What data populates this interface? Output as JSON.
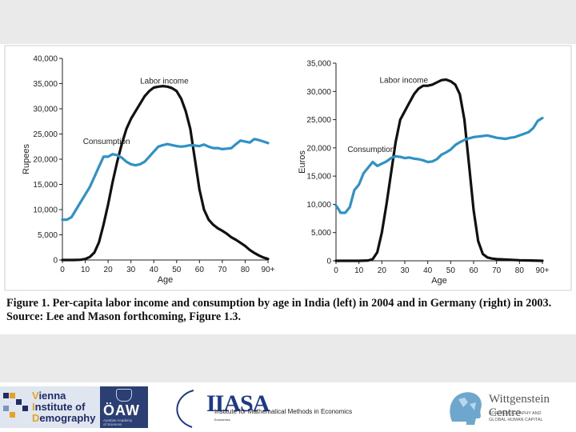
{
  "caption": "Figure 1. Per-capita labor income and consumption by age in India (left) in 2004 and in Germany (right) in 2003. Source: Lee and Mason forthcoming, Figure 1.3.",
  "colors": {
    "labor": "#111111",
    "consumption": "#2f92c6",
    "band": "#eaeaea"
  },
  "chart_data": [
    {
      "type": "line",
      "title": "India 2004",
      "xlabel": "Age",
      "ylabel": "Rupees",
      "xlim": [
        0,
        90
      ],
      "ylim": [
        0,
        40000
      ],
      "xticks": [
        "0",
        "10",
        "20",
        "30",
        "40",
        "50",
        "60",
        "70",
        "80",
        "90+"
      ],
      "yticks": [
        "0",
        "5,000",
        "10,000",
        "15,000",
        "20,000",
        "25,000",
        "30,000",
        "35,000",
        "40,000"
      ],
      "annotations": [
        {
          "text": "Labor income",
          "x": 34,
          "y": 35000,
          "series": "labor"
        },
        {
          "text": "Consumption",
          "x": 9,
          "y": 23000,
          "series": "consumption"
        }
      ],
      "series": [
        {
          "name": "Labor income",
          "x": [
            0,
            5,
            8,
            10,
            12,
            14,
            16,
            18,
            20,
            22,
            24,
            26,
            28,
            30,
            32,
            34,
            36,
            38,
            40,
            42,
            44,
            46,
            48,
            50,
            52,
            54,
            56,
            58,
            60,
            62,
            64,
            66,
            68,
            70,
            72,
            74,
            76,
            78,
            80,
            82,
            84,
            86,
            88,
            90
          ],
          "y": [
            0,
            0,
            50,
            200,
            600,
            1500,
            3500,
            7000,
            11000,
            15500,
            19500,
            23000,
            26000,
            28000,
            29500,
            31000,
            32500,
            33500,
            34200,
            34400,
            34500,
            34400,
            34100,
            33500,
            32000,
            29500,
            26000,
            20000,
            14000,
            10000,
            8000,
            7000,
            6300,
            5800,
            5200,
            4500,
            4000,
            3400,
            2800,
            2000,
            1400,
            900,
            500,
            200
          ]
        },
        {
          "name": "Consumption",
          "x": [
            0,
            2,
            4,
            6,
            8,
            10,
            12,
            14,
            16,
            18,
            20,
            22,
            24,
            26,
            28,
            30,
            32,
            34,
            36,
            38,
            40,
            42,
            44,
            46,
            48,
            50,
            52,
            54,
            56,
            58,
            60,
            62,
            64,
            66,
            68,
            70,
            72,
            74,
            76,
            78,
            80,
            82,
            84,
            86,
            88,
            90
          ],
          "y": [
            8000,
            8000,
            8500,
            10000,
            11500,
            13000,
            14500,
            16500,
            18500,
            20500,
            20500,
            21000,
            20800,
            20300,
            19500,
            19000,
            18800,
            19000,
            19500,
            20500,
            21500,
            22500,
            22800,
            23000,
            22800,
            22600,
            22500,
            22600,
            22800,
            22700,
            22600,
            22900,
            22500,
            22200,
            22200,
            22000,
            22100,
            22200,
            23000,
            23700,
            23500,
            23300,
            24000,
            23800,
            23500,
            23200
          ]
        }
      ]
    },
    {
      "type": "line",
      "title": "Germany 2003",
      "xlabel": "Age",
      "ylabel": "Euros",
      "xlim": [
        0,
        90
      ],
      "ylim": [
        0,
        35000
      ],
      "xticks": [
        "0",
        "10",
        "20",
        "30",
        "40",
        "50",
        "60",
        "70",
        "80",
        "90+"
      ],
      "yticks": [
        "0",
        "5,000",
        "10,000",
        "15,000",
        "20,000",
        "25,000",
        "30,000",
        "35,000"
      ],
      "annotations": [
        {
          "text": "Labor income",
          "x": 19,
          "y": 31500,
          "series": "labor"
        },
        {
          "text": "Consumption",
          "x": 5,
          "y": 19300,
          "series": "consumption"
        }
      ],
      "series": [
        {
          "name": "Labor income",
          "x": [
            0,
            10,
            14,
            16,
            18,
            20,
            22,
            24,
            26,
            28,
            30,
            32,
            34,
            36,
            38,
            40,
            42,
            44,
            46,
            48,
            50,
            52,
            54,
            56,
            58,
            60,
            62,
            64,
            66,
            68,
            70,
            75,
            80,
            85,
            90
          ],
          "y": [
            0,
            0,
            50,
            300,
            1500,
            5000,
            10000,
            15500,
            21000,
            25000,
            26500,
            28000,
            29500,
            30500,
            31000,
            31000,
            31200,
            31600,
            32000,
            32100,
            31800,
            31200,
            29500,
            25000,
            17000,
            9000,
            3500,
            1200,
            600,
            400,
            300,
            200,
            100,
            50,
            0
          ]
        },
        {
          "name": "Consumption",
          "x": [
            0,
            1,
            2,
            4,
            6,
            8,
            10,
            12,
            14,
            16,
            18,
            20,
            22,
            24,
            26,
            28,
            30,
            32,
            34,
            36,
            38,
            40,
            42,
            44,
            46,
            48,
            50,
            52,
            54,
            56,
            58,
            60,
            62,
            64,
            66,
            68,
            70,
            72,
            74,
            76,
            78,
            80,
            82,
            84,
            86,
            88,
            90
          ],
          "y": [
            9800,
            9200,
            8500,
            8500,
            9500,
            12500,
            13500,
            15500,
            16500,
            17500,
            16800,
            17200,
            17600,
            18200,
            18500,
            18400,
            18200,
            18300,
            18100,
            18000,
            17800,
            17500,
            17600,
            18000,
            18800,
            19200,
            19700,
            20500,
            21000,
            21400,
            21700,
            21900,
            22000,
            22100,
            22200,
            22000,
            21800,
            21700,
            21600,
            21800,
            21900,
            22200,
            22500,
            22800,
            23500,
            24800,
            25300
          ]
        }
      ]
    }
  ]
}
